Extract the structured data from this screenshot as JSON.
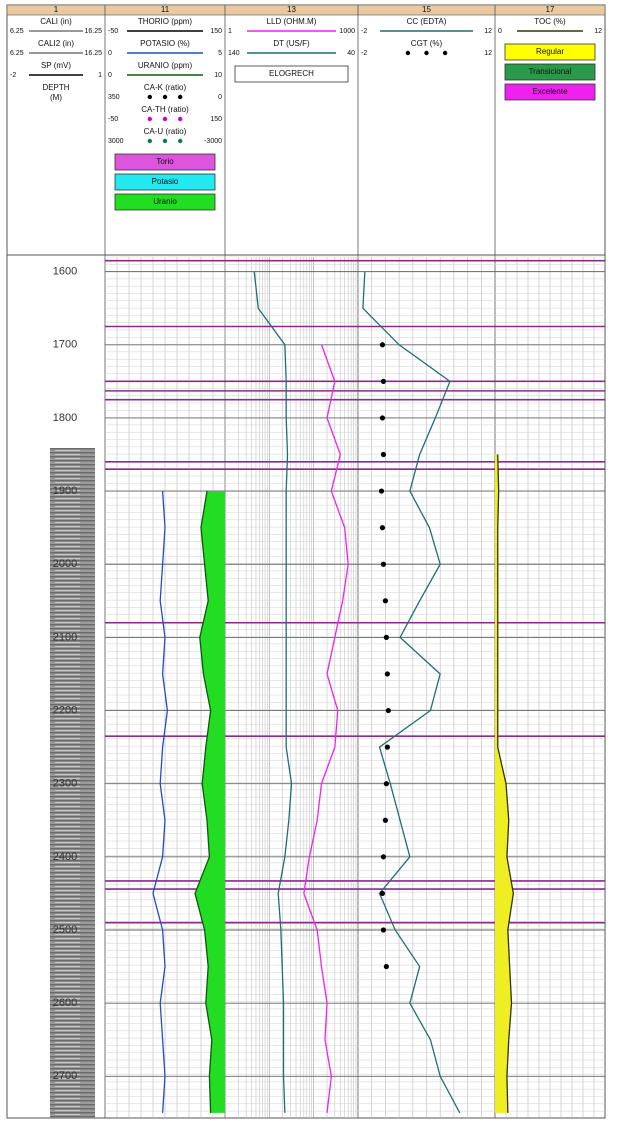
{
  "chart_data": {
    "type": "well-log",
    "depth_range": [
      1580,
      2757
    ],
    "depth_ticks": [
      1600,
      1700,
      1800,
      1900,
      2000,
      2100,
      2200,
      2300,
      2400,
      2500,
      2600,
      2700
    ],
    "depths": [
      1600,
      1650,
      1700,
      1750,
      1800,
      1850,
      1900,
      1950,
      2000,
      2050,
      2100,
      2150,
      2200,
      2250,
      2300,
      2350,
      2400,
      2450,
      2500,
      2550,
      2600,
      2650,
      2700,
      2750
    ],
    "formation_tops": [
      1585,
      1675,
      1750,
      1763,
      1775,
      1860,
      1870,
      2080,
      2235,
      2433,
      2444,
      2490
    ],
    "tracks": [
      {
        "number": "1",
        "depth_label": "DEPTH",
        "depth_unit": "(M)",
        "curves": [
          {
            "name": "CALI (in)",
            "color": "#777777",
            "scale": [
              6.25,
              16.25
            ]
          },
          {
            "name": "CALI2 (in)",
            "color": "#777777",
            "scale": [
              6.25,
              16.25
            ]
          },
          {
            "name": "SP (mV)",
            "color": "#000000",
            "scale": [
              -2,
              1
            ]
          }
        ]
      },
      {
        "number": "11",
        "curves": [
          {
            "name": "THORIO (ppm)",
            "color": "#000000",
            "scale": [
              -50,
              150
            ]
          },
          {
            "name": "POTASIO (%)",
            "color": "#1f4fbf",
            "scale": [
              0,
              5
            ],
            "values": [
              null,
              null,
              null,
              null,
              null,
              null,
              2.4,
              2.5,
              2.4,
              2.3,
              2.5,
              2.4,
              2.6,
              2.4,
              2.3,
              2.5,
              2.4,
              2.0,
              2.4,
              2.5,
              2.3,
              2.4,
              2.5,
              2.4
            ]
          },
          {
            "name": "URANIO (ppm)",
            "color": "#0a5a0a",
            "scale": [
              0,
              10
            ],
            "fill": "right",
            "fill_color": "#22dd22",
            "values": [
              null,
              null,
              null,
              null,
              null,
              null,
              8.5,
              8,
              8.3,
              8.6,
              7.9,
              8.2,
              8.8,
              8.4,
              8.1,
              8.5,
              8.7,
              7.5,
              8.3,
              8.6,
              8.4,
              8.9,
              8.7,
              8.8
            ]
          },
          {
            "name": "CA-K (ratio)",
            "color": "#000000",
            "scale": [
              350,
              0
            ],
            "style": "dots"
          },
          {
            "name": "CA-TH (ratio)",
            "color": "#cc00cc",
            "scale": [
              -50,
              150
            ],
            "style": "dots"
          },
          {
            "name": "CA-U (ratio)",
            "color": "#0a7a4a",
            "scale": [
              3000,
              -3000
            ],
            "style": "dots"
          }
        ],
        "legend_boxes": [
          {
            "label": "Torio",
            "color": "#dd55dd"
          },
          {
            "label": "Potasio",
            "color": "#22e8f0"
          },
          {
            "label": "Uranio",
            "color": "#22dd22"
          }
        ]
      },
      {
        "number": "13",
        "curves": [
          {
            "name": "LLD (OHM.M)",
            "color": "#ee22ee",
            "scale": [
              1,
              1000
            ],
            "log": true,
            "values": [
              null,
              null,
              150,
              300,
              200,
              400,
              250,
              500,
              600,
              450,
              300,
              200,
              350,
              300,
              150,
              120,
              80,
              60,
              120,
              150,
              200,
              180,
              250,
              200
            ]
          },
          {
            "name": "DT (US/F)",
            "color": "#1f6f6f",
            "scale": [
              140,
              40
            ],
            "values": [
              118,
              115,
              95,
              94,
              94,
              93,
              94,
              94,
              94,
              94,
              94,
              94,
              94,
              94,
              90,
              92,
              95,
              100,
              98,
              97,
              96,
              96,
              96,
              95
            ]
          }
        ],
        "legend_boxes": [
          {
            "label": "ELOGRECH",
            "color": "#ffffff"
          }
        ]
      },
      {
        "number": "15",
        "curves": [
          {
            "name": "CC (EDTA)",
            "color": "#1f6f6f",
            "scale": [
              -2,
              12
            ],
            "values": [
              -1.3,
              -1.5,
              2.2,
              7.4,
              5.9,
              4.3,
              3.3,
              5.3,
              6.4,
              4.3,
              2.3,
              6.4,
              5.4,
              0.2,
              1.3,
              2.3,
              3.3,
              0.2,
              1.8,
              4.3,
              3.3,
              5.4,
              6.4,
              8.4
            ]
          },
          {
            "name": "CGT (%)",
            "color": "#000000",
            "scale": [
              -2,
              12
            ],
            "style": "dots",
            "values": [
              null,
              null,
              0.5,
              0.6,
              0.5,
              0.6,
              0.4,
              0.5,
              0.6,
              0.8,
              0.9,
              1.0,
              1.1,
              1.0,
              0.9,
              0.8,
              0.6,
              0.5,
              0.6,
              0.9,
              null,
              null,
              null,
              null
            ]
          }
        ]
      },
      {
        "number": "17",
        "curves": [
          {
            "name": "TOC (%)",
            "color": "#333300",
            "scale": [
              0,
              12
            ],
            "fill": "left",
            "fill_color": "#eeee22",
            "values": [
              null,
              null,
              null,
              null,
              null,
              0.3,
              0.4,
              0.3,
              0.3,
              0.3,
              0.3,
              0.3,
              0.3,
              0.3,
              1.2,
              1.5,
              1.3,
              2.0,
              1.4,
              1.6,
              1.8,
              1.5,
              1.3,
              1.4
            ]
          }
        ],
        "legend_boxes": [
          {
            "label": "Regular",
            "color": "#ffff00"
          },
          {
            "label": "Transicional",
            "color": "#2a9a4a"
          },
          {
            "label": "Excelente",
            "color": "#ee22ee"
          }
        ]
      }
    ]
  }
}
